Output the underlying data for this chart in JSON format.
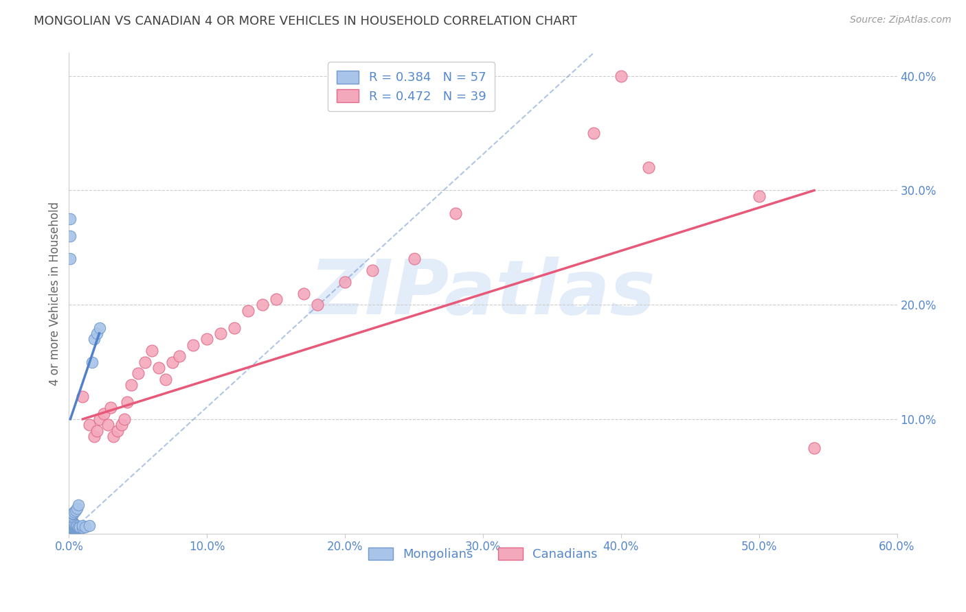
{
  "title": "MONGOLIAN VS CANADIAN 4 OR MORE VEHICLES IN HOUSEHOLD CORRELATION CHART",
  "source": "Source: ZipAtlas.com",
  "ylabel": "4 or more Vehicles in Household",
  "watermark": "ZIPatlas",
  "xlim": [
    0.0,
    0.6
  ],
  "ylim": [
    0.0,
    0.42
  ],
  "xticks": [
    0.0,
    0.1,
    0.2,
    0.3,
    0.4,
    0.5,
    0.6
  ],
  "yticks_right": [
    0.1,
    0.2,
    0.3,
    0.4
  ],
  "legend_r1": "0.384",
  "legend_n1": "57",
  "legend_r2": "0.472",
  "legend_n2": "39",
  "mongolian_color": "#a8c4e8",
  "canadian_color": "#f4a8bb",
  "mongolian_edge": "#7099cc",
  "canadian_edge": "#e06888",
  "trend_mongolian_color": "#5080c8",
  "trend_canadian_color": "#e85878",
  "grid_color": "#cccccc",
  "title_color": "#404040",
  "axis_tick_color": "#5588cc",
  "watermark_color": "#c8daf4",
  "mongolians_x": [
    0.001,
    0.001,
    0.001,
    0.001,
    0.001,
    0.001,
    0.001,
    0.001,
    0.001,
    0.001,
    0.002,
    0.002,
    0.002,
    0.002,
    0.002,
    0.002,
    0.002,
    0.002,
    0.003,
    0.003,
    0.003,
    0.003,
    0.003,
    0.003,
    0.004,
    0.004,
    0.004,
    0.004,
    0.005,
    0.005,
    0.005,
    0.006,
    0.006,
    0.006,
    0.007,
    0.007,
    0.008,
    0.008,
    0.01,
    0.01,
    0.012,
    0.015,
    0.017,
    0.018,
    0.02,
    0.022,
    0.001,
    0.001,
    0.001,
    0.002,
    0.002,
    0.003,
    0.003,
    0.004,
    0.005,
    0.006,
    0.007
  ],
  "mongolians_y": [
    0.005,
    0.006,
    0.007,
    0.008,
    0.009,
    0.01,
    0.011,
    0.012,
    0.013,
    0.014,
    0.005,
    0.006,
    0.007,
    0.008,
    0.009,
    0.01,
    0.011,
    0.012,
    0.005,
    0.006,
    0.007,
    0.008,
    0.009,
    0.01,
    0.005,
    0.006,
    0.007,
    0.008,
    0.005,
    0.006,
    0.007,
    0.005,
    0.006,
    0.007,
    0.005,
    0.006,
    0.005,
    0.006,
    0.005,
    0.007,
    0.006,
    0.007,
    0.15,
    0.17,
    0.175,
    0.18,
    0.24,
    0.26,
    0.275,
    0.015,
    0.016,
    0.017,
    0.018,
    0.019,
    0.02,
    0.022,
    0.025
  ],
  "canadians_x": [
    0.01,
    0.015,
    0.018,
    0.02,
    0.022,
    0.025,
    0.028,
    0.03,
    0.032,
    0.035,
    0.038,
    0.04,
    0.042,
    0.045,
    0.05,
    0.055,
    0.06,
    0.065,
    0.07,
    0.075,
    0.08,
    0.09,
    0.1,
    0.11,
    0.12,
    0.13,
    0.14,
    0.15,
    0.17,
    0.18,
    0.2,
    0.22,
    0.25,
    0.28,
    0.38,
    0.4,
    0.42,
    0.5,
    0.54
  ],
  "canadians_y": [
    0.12,
    0.095,
    0.085,
    0.09,
    0.1,
    0.105,
    0.095,
    0.11,
    0.085,
    0.09,
    0.095,
    0.1,
    0.115,
    0.13,
    0.14,
    0.15,
    0.16,
    0.145,
    0.135,
    0.15,
    0.155,
    0.165,
    0.17,
    0.175,
    0.18,
    0.195,
    0.2,
    0.205,
    0.21,
    0.2,
    0.22,
    0.23,
    0.24,
    0.28,
    0.35,
    0.4,
    0.32,
    0.295,
    0.075
  ],
  "mongolian_trend_x": [
    0.001,
    0.022
  ],
  "mongolian_trend_y": [
    0.1,
    0.175
  ],
  "canadian_trend_x": [
    0.01,
    0.54
  ],
  "canadian_trend_y": [
    0.1,
    0.3
  ],
  "dashed_line_x": [
    0.0,
    0.38
  ],
  "dashed_line_y": [
    0.0,
    0.42
  ]
}
